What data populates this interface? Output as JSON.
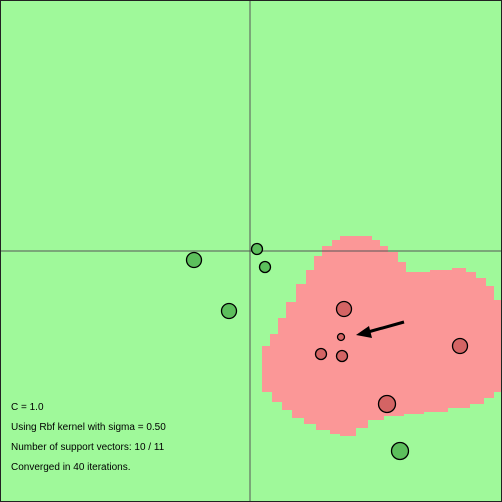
{
  "colors": {
    "background": "#9ff99a",
    "decision_region": "#fb9797",
    "axis": "#555555",
    "border": "#222222",
    "positive_point": "#5cbf5c",
    "negative_point": "#d46464",
    "point_stroke": "#000000",
    "arrow": "#000000"
  },
  "info": {
    "c_line": "C = 1.0",
    "kernel_line": "Using Rbf kernel with sigma = 0.50",
    "support_line": "Number of support vectors: 10 / 11",
    "converged_line": "Converged in 40 iterations."
  }
}
